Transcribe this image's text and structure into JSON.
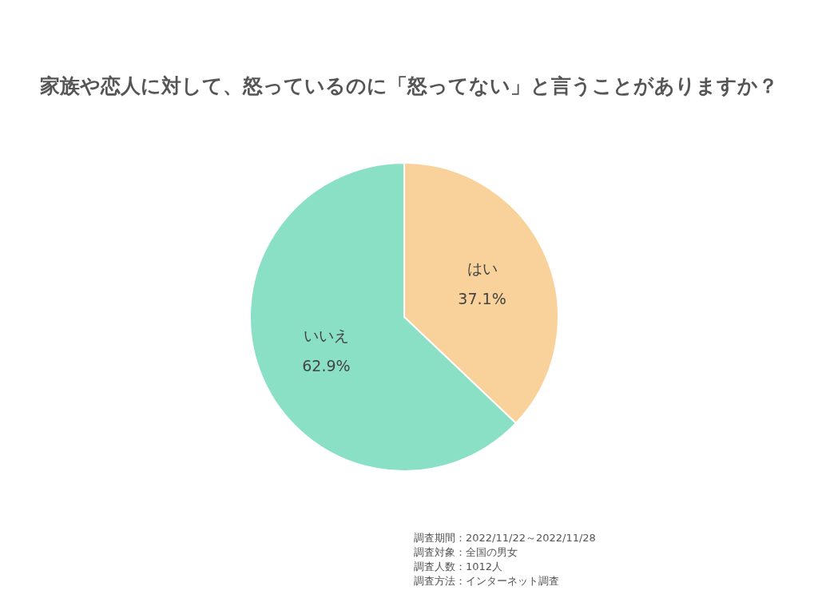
{
  "chart_data": {
    "type": "pie",
    "title": "家族や恋人に対して、怒っているのに「怒ってない」と言うことがありますか？",
    "categories": [
      "はい",
      "いいえ"
    ],
    "values": [
      37.1,
      62.9
    ],
    "colors": [
      "#f9d29b",
      "#8ae0c4"
    ],
    "value_labels": [
      "37.1%",
      "62.9%"
    ],
    "annotations": [
      "調査期間：2022/11/22～2022/11/28",
      "調査対象：全国の男女",
      "調査人数：1012人",
      "調査方法：インターネット調査"
    ]
  }
}
